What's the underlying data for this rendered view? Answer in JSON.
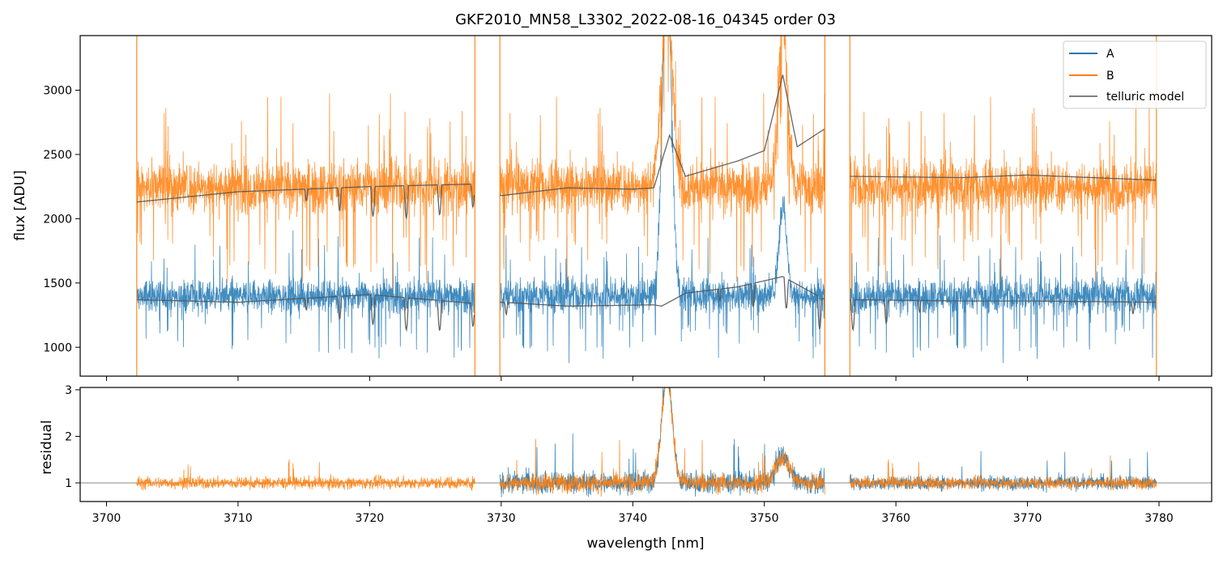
{
  "figure": {
    "title": "GKF2010_MN58_L3302_2022-08-16_04345  order 03"
  },
  "chart_data": [
    {
      "type": "line",
      "panel": "top",
      "title": "GKF2010_MN58_L3302_2022-08-16_04345  order 03",
      "xlabel": "",
      "ylabel": "flux [ADU]",
      "xlim": [
        3698,
        3784
      ],
      "ylim": [
        775,
        3425
      ],
      "yticks": [
        1000,
        1500,
        2000,
        2500,
        3000
      ],
      "ytick_labels": [
        "1000",
        "1500",
        "2000",
        "2500",
        "3000"
      ],
      "xticks": [
        3700,
        3710,
        3720,
        3730,
        3740,
        3750,
        3760,
        3770,
        3780
      ],
      "grid": false,
      "legend": {
        "position": "top-right",
        "entries": [
          "A",
          "B",
          "telluric model"
        ]
      },
      "segments": [
        [
          3702.3,
          3728.0
        ],
        [
          3729.9,
          3754.6
        ],
        [
          3756.5,
          3779.8
        ]
      ],
      "series": [
        {
          "name": "A",
          "color": "#1f77b4",
          "baseline": 1400,
          "noise_amplitude": 130,
          "features": [
            {
              "center": 3742.6,
              "width": 0.35,
              "peak": 3900
            },
            {
              "center": 3751.4,
              "width": 0.3,
              "peak": 2100
            }
          ]
        },
        {
          "name": "B",
          "color": "#ff7f0e",
          "baseline": 2250,
          "noise_amplitude": 200,
          "features": [
            {
              "center": 3742.6,
              "width": 0.45,
              "peak": 3600
            },
            {
              "center": 3751.4,
              "width": 0.35,
              "peak": 3500
            }
          ]
        },
        {
          "name": "telluric model",
          "color": "#555555",
          "curve_A": {
            "x": [
              3702.3,
              3710,
              3720,
              3728.0,
              3730,
              3735,
              3741.6,
              3742.2,
              3744,
              3748,
              3751.4,
              3754.6,
              3756.5,
              3765,
              3770,
              3779.8
            ],
            "y": [
              1370,
              1350,
              1410,
              1340,
              1350,
              1320,
              1330,
              1320,
              1420,
              1470,
              1550,
              1370,
              1370,
              1360,
              1360,
              1350
            ]
          },
          "curve_B": {
            "x": [
              3702.3,
              3710,
              3720,
              3728.0,
              3730,
              3735,
              3740,
              3741.6,
              3742.8,
              3744,
              3748,
              3750,
              3751.4,
              3752.5,
              3754.6,
              3756.5,
              3765,
              3770,
              3779.8
            ],
            "y": [
              2130,
              2210,
              2250,
              2270,
              2180,
              2240,
              2230,
              2240,
              2650,
              2330,
              2450,
              2530,
              3120,
              2560,
              2700,
              2330,
              2320,
              2340,
              2300
            ]
          }
        }
      ]
    },
    {
      "type": "line",
      "panel": "bottom",
      "xlabel": "wavelength [nm]",
      "ylabel": "residual",
      "xlim": [
        3698,
        3784
      ],
      "ylim": [
        0.6,
        3.05
      ],
      "yticks": [
        1,
        2,
        3
      ],
      "ytick_labels": [
        "1",
        "2",
        "3"
      ],
      "xticks": [
        3700,
        3710,
        3720,
        3730,
        3740,
        3750,
        3760,
        3770,
        3780
      ],
      "xtick_labels": [
        "3700",
        "3710",
        "3720",
        "3730",
        "3740",
        "3750",
        "3760",
        "3770",
        "3780"
      ],
      "reference_line": 1,
      "series": [
        {
          "name": "A",
          "color": "#1f77b4",
          "baseline": 1.0,
          "noise_amplitude": 0.15,
          "features": [
            {
              "center": 3742.6,
              "width": 0.4,
              "peak": 3.3
            },
            {
              "center": 3751.4,
              "width": 0.5,
              "peak": 1.6
            }
          ]
        },
        {
          "name": "B",
          "color": "#ff7f0e",
          "baseline": 1.0,
          "noise_amplitude": 0.13,
          "features": [
            {
              "center": 3742.6,
              "width": 0.4,
              "peak": 3.3
            },
            {
              "center": 3751.4,
              "width": 0.5,
              "peak": 1.55
            }
          ]
        }
      ]
    }
  ]
}
